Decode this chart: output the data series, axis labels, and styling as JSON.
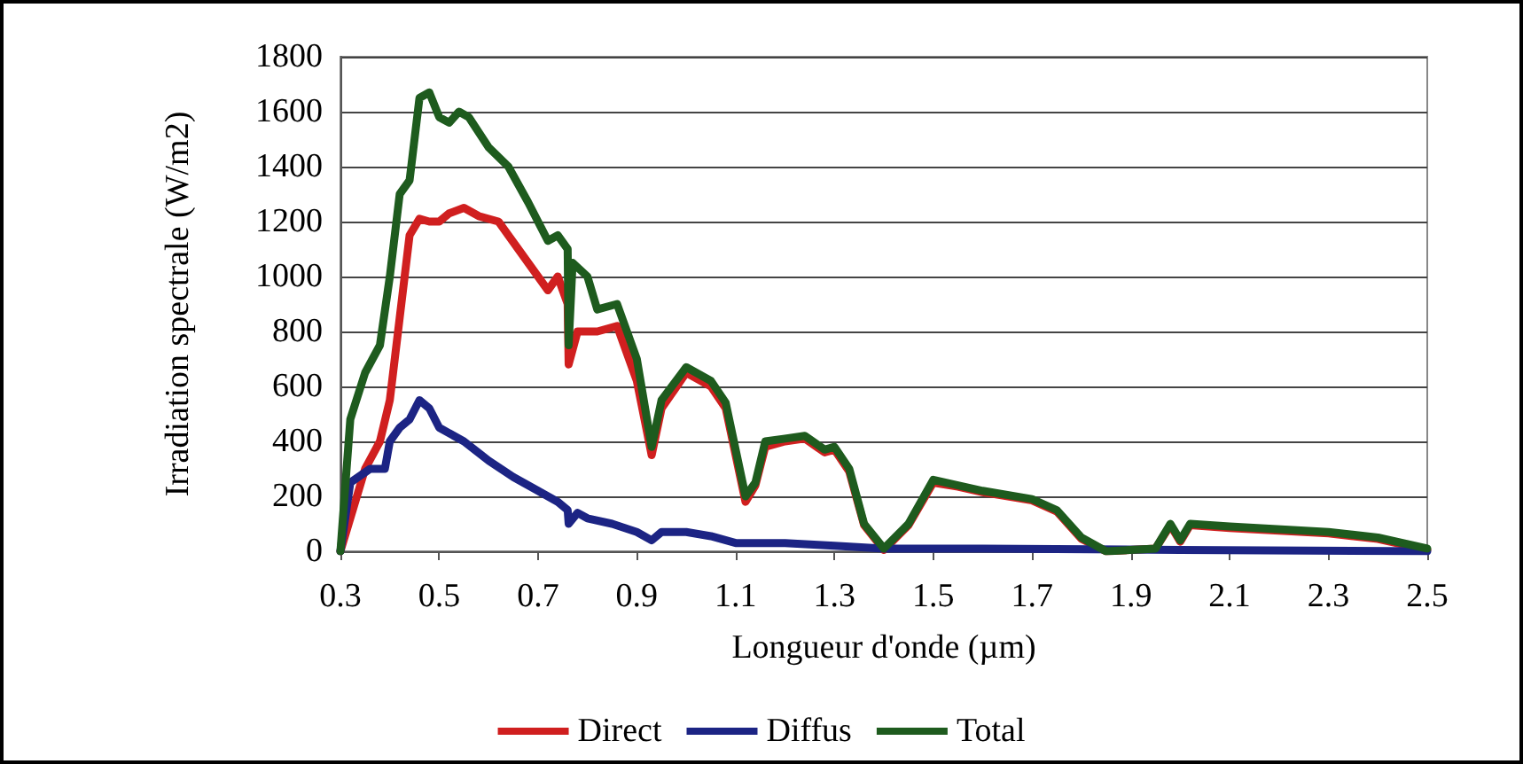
{
  "chart_data": {
    "type": "line",
    "xlabel": "Longueur d'onde (µm)",
    "ylabel": "Irradiation spectrale (W/m2)",
    "xlim": [
      0.3,
      2.5
    ],
    "xticks": [
      0.3,
      0.5,
      0.7,
      0.9,
      1.1,
      1.3,
      1.5,
      1.7,
      1.9,
      2.1,
      2.3,
      2.5
    ],
    "ylim": [
      0,
      1800
    ],
    "yticks": [
      0,
      200,
      400,
      600,
      800,
      1000,
      1200,
      1400,
      1600,
      1800
    ],
    "grid": "y",
    "legend": "bottom",
    "marker": "none",
    "line_style": "solid",
    "series": [
      {
        "name": "Direct",
        "color": "#d01f1f",
        "x": [
          0.3,
          0.35,
          0.38,
          0.4,
          0.42,
          0.44,
          0.46,
          0.48,
          0.5,
          0.52,
          0.55,
          0.58,
          0.62,
          0.66,
          0.7,
          0.72,
          0.74,
          0.76,
          0.762,
          0.78,
          0.8,
          0.82,
          0.86,
          0.9,
          0.93,
          0.95,
          1.0,
          1.05,
          1.08,
          1.12,
          1.14,
          1.16,
          1.2,
          1.24,
          1.28,
          1.3,
          1.33,
          1.36,
          1.4,
          1.45,
          1.5,
          1.55,
          1.6,
          1.7,
          1.75,
          1.8,
          1.85,
          1.95,
          1.98,
          2.0,
          2.02,
          2.1,
          2.3,
          2.4,
          2.5
        ],
        "values": [
          0,
          300,
          400,
          550,
          850,
          1150,
          1210,
          1200,
          1200,
          1230,
          1250,
          1220,
          1200,
          1100,
          1000,
          950,
          1000,
          900,
          680,
          800,
          800,
          800,
          820,
          620,
          350,
          520,
          650,
          600,
          520,
          180,
          240,
          380,
          400,
          410,
          360,
          370,
          290,
          95,
          5,
          95,
          250,
          235,
          215,
          185,
          145,
          45,
          0,
          10,
          95,
          35,
          95,
          85,
          65,
          45,
          5
        ]
      },
      {
        "name": "Diffus",
        "color": "#1c2484",
        "x": [
          0.3,
          0.32,
          0.36,
          0.39,
          0.4,
          0.42,
          0.44,
          0.46,
          0.48,
          0.5,
          0.55,
          0.6,
          0.65,
          0.7,
          0.74,
          0.76,
          0.762,
          0.78,
          0.8,
          0.85,
          0.9,
          0.93,
          0.95,
          1.0,
          1.05,
          1.1,
          1.2,
          1.3,
          1.4,
          1.6,
          2.0,
          2.5
        ],
        "values": [
          0,
          250,
          300,
          300,
          400,
          450,
          480,
          550,
          520,
          450,
          400,
          330,
          270,
          220,
          180,
          150,
          100,
          140,
          120,
          100,
          70,
          40,
          70,
          70,
          55,
          30,
          30,
          20,
          10,
          10,
          5,
          0
        ]
      },
      {
        "name": "Total",
        "color": "#1e5b1e",
        "x": [
          0.3,
          0.32,
          0.35,
          0.38,
          0.4,
          0.42,
          0.44,
          0.46,
          0.48,
          0.5,
          0.52,
          0.54,
          0.56,
          0.6,
          0.64,
          0.68,
          0.7,
          0.72,
          0.74,
          0.76,
          0.762,
          0.77,
          0.8,
          0.82,
          0.86,
          0.9,
          0.93,
          0.95,
          1.0,
          1.05,
          1.08,
          1.12,
          1.14,
          1.16,
          1.2,
          1.24,
          1.28,
          1.3,
          1.33,
          1.36,
          1.4,
          1.45,
          1.5,
          1.55,
          1.6,
          1.7,
          1.75,
          1.8,
          1.85,
          1.95,
          1.98,
          2.0,
          2.02,
          2.1,
          2.3,
          2.4,
          2.5
        ],
        "values": [
          0,
          480,
          650,
          750,
          1000,
          1300,
          1350,
          1650,
          1670,
          1580,
          1560,
          1600,
          1580,
          1470,
          1400,
          1270,
          1200,
          1130,
          1150,
          1100,
          750,
          1050,
          1000,
          880,
          900,
          700,
          380,
          550,
          670,
          620,
          540,
          200,
          250,
          400,
          410,
          420,
          370,
          380,
          300,
          100,
          10,
          100,
          260,
          240,
          220,
          190,
          150,
          50,
          0,
          10,
          100,
          40,
          100,
          90,
          70,
          50,
          10
        ]
      }
    ]
  }
}
